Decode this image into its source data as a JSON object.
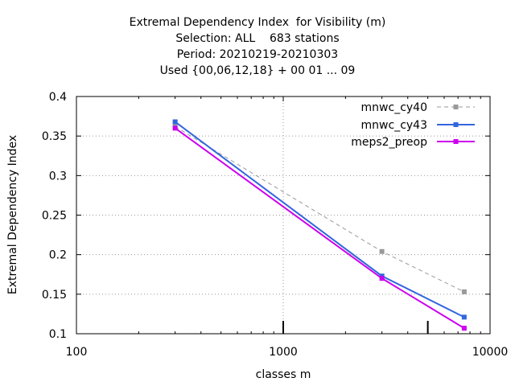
{
  "chart_data": {
    "type": "line",
    "title_lines": [
      "Extremal Dependency Index  for Visibility (m)",
      "Selection: ALL    683 stations",
      "Period: 20210219-20210303",
      "Used {00,06,12,18} + 00 01 ... 09"
    ],
    "xlabel": "classes m",
    "ylabel": "Extremal Dependency Index",
    "x_scale": "log",
    "xlim": [
      100,
      10000
    ],
    "ylim": [
      0.1,
      0.4
    ],
    "x_ticks": [
      100,
      1000,
      10000
    ],
    "x_tick_labels": [
      "100",
      "1000",
      "10000"
    ],
    "y_ticks": [
      0.1,
      0.15,
      0.2,
      0.25,
      0.3,
      0.35,
      0.4
    ],
    "y_tick_labels": [
      "0.1",
      "0.15",
      "0.2",
      "0.25",
      "0.3",
      "0.35",
      "0.4"
    ],
    "grid": true,
    "legend_position": "top-right",
    "extra_x_markers": [
      1000,
      5000
    ],
    "series": [
      {
        "name": "mnwc_cy40",
        "color": "#999999",
        "dashed": true,
        "x": [
          300,
          3000,
          7500
        ],
        "y": [
          0.362,
          0.204,
          0.153
        ]
      },
      {
        "name": "mnwc_cy43",
        "color": "#3366dd",
        "dashed": false,
        "x": [
          300,
          3000,
          7500
        ],
        "y": [
          0.368,
          0.173,
          0.121
        ]
      },
      {
        "name": "meps2_preop",
        "color": "#cc00ee",
        "dashed": false,
        "x": [
          300,
          3000,
          7500
        ],
        "y": [
          0.36,
          0.17,
          0.107
        ]
      }
    ]
  }
}
